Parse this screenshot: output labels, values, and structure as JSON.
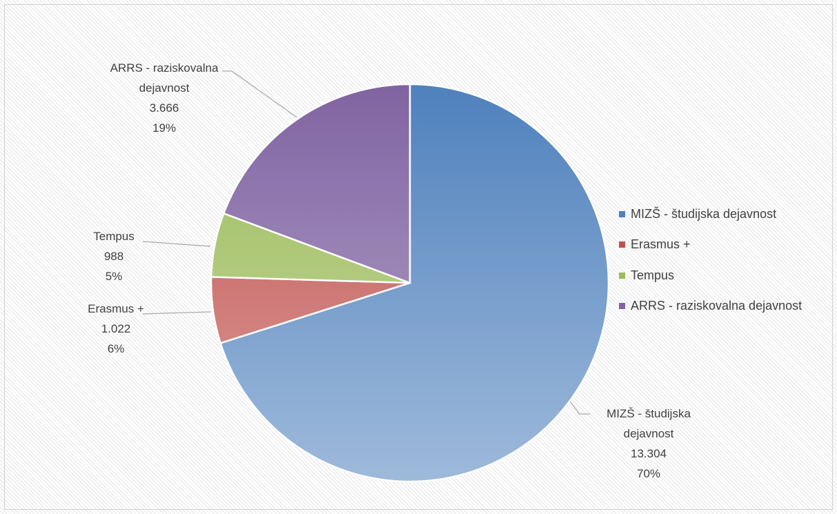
{
  "chart_data": {
    "type": "pie",
    "categories": [
      "MIZŠ - študijska dejavnost",
      "Erasmus +",
      "Tempus",
      "ARRS - raziskovalna dejavnost"
    ],
    "values": [
      13304,
      1022,
      988,
      3666
    ],
    "value_labels": [
      "13.304",
      "1.022",
      "988",
      "3.666"
    ],
    "percents": [
      70,
      6,
      5,
      19
    ],
    "percent_labels": [
      "70%",
      "6%",
      "5%",
      "19%"
    ],
    "colors": [
      "#4f81bd",
      "#c0504d",
      "#9bbb59",
      "#8064a2"
    ],
    "legend": "right"
  }
}
